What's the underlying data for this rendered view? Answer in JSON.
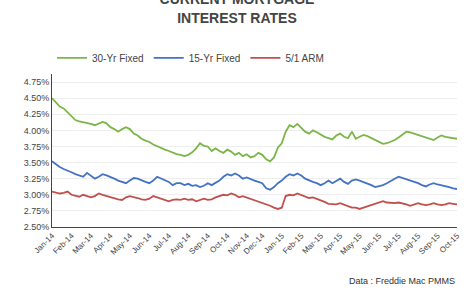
{
  "chart_data": {
    "type": "line",
    "title": "CURRENT MORTGAGE\nINTEREST RATES",
    "annotations": [
      "Data : Freddie Mac PMMS"
    ],
    "categories": [
      "Jan-14",
      null,
      null,
      null,
      null,
      "Feb-14",
      null,
      null,
      null,
      null,
      "Mar-14",
      null,
      null,
      null,
      null,
      "Apr-14",
      null,
      null,
      null,
      null,
      "May-14",
      null,
      null,
      null,
      null,
      "Jun-14",
      null,
      null,
      null,
      null,
      "Jul-14",
      null,
      null,
      null,
      null,
      "Aug-14",
      null,
      null,
      null,
      null,
      "Sep-14",
      null,
      null,
      null,
      null,
      "Oct-14",
      null,
      null,
      null,
      null,
      "Nov-14",
      null,
      null,
      null,
      "Dec-14",
      null,
      null,
      null,
      null,
      "Jan-15",
      null,
      null,
      null,
      null,
      "Feb-15",
      null,
      null,
      null,
      null,
      "Mar-15",
      null,
      null,
      null,
      null,
      "Apr-15",
      null,
      null,
      null,
      null,
      "May-15",
      null,
      null,
      null,
      null,
      "Jun-15",
      null,
      null,
      null,
      null,
      "Jul-15",
      null,
      null,
      null,
      null,
      "Aug-15",
      null,
      null,
      null,
      null,
      "Sep-15",
      null,
      null,
      null,
      null,
      "Oct-15"
    ],
    "series": [
      {
        "name": "30-Yr Fixed",
        "color": "#7ab648",
        "values": [
          4.5,
          4.43,
          4.37,
          4.34,
          4.28,
          4.22,
          4.16,
          4.14,
          4.13,
          4.12,
          4.1,
          4.08,
          4.1,
          4.13,
          4.11,
          4.05,
          4.02,
          3.98,
          4.02,
          4.05,
          4.02,
          3.95,
          3.92,
          3.87,
          3.84,
          3.82,
          3.78,
          3.75,
          3.73,
          3.7,
          3.68,
          3.65,
          3.63,
          3.62,
          3.6,
          3.62,
          3.66,
          3.72,
          3.8,
          3.76,
          3.75,
          3.68,
          3.72,
          3.68,
          3.65,
          3.7,
          3.67,
          3.62,
          3.65,
          3.6,
          3.63,
          3.58,
          3.6,
          3.65,
          3.62,
          3.55,
          3.52,
          3.58,
          3.73,
          3.8,
          3.98,
          4.08,
          4.05,
          4.1,
          4.04,
          3.98,
          3.95,
          4.0,
          3.97,
          3.93,
          3.9,
          3.88,
          3.86,
          3.92,
          3.95,
          3.9,
          3.88,
          3.98,
          3.87,
          3.9,
          3.93,
          3.91,
          3.88,
          3.85,
          3.82,
          3.79,
          3.8,
          3.82,
          3.85,
          3.89,
          3.94,
          3.98,
          3.97,
          3.95,
          3.93,
          3.91,
          3.9,
          3.87,
          3.85,
          3.89,
          3.92,
          3.9,
          3.89,
          3.88,
          3.87
        ]
      },
      {
        "name": "15-Yr Fixed",
        "color": "#4472c4",
        "values": [
          3.52,
          3.47,
          3.43,
          3.4,
          3.38,
          3.35,
          3.32,
          3.3,
          3.28,
          3.34,
          3.3,
          3.25,
          3.28,
          3.32,
          3.3,
          3.28,
          3.25,
          3.22,
          3.2,
          3.18,
          3.22,
          3.26,
          3.25,
          3.22,
          3.2,
          3.18,
          3.22,
          3.28,
          3.25,
          3.22,
          3.2,
          3.15,
          3.18,
          3.18,
          3.15,
          3.17,
          3.14,
          3.15,
          3.12,
          3.14,
          3.18,
          3.15,
          3.18,
          3.22,
          3.28,
          3.32,
          3.3,
          3.33,
          3.3,
          3.25,
          3.27,
          3.24,
          3.22,
          3.2,
          3.18,
          3.1,
          3.08,
          3.12,
          3.18,
          3.22,
          3.28,
          3.32,
          3.3,
          3.33,
          3.3,
          3.25,
          3.22,
          3.2,
          3.18,
          3.15,
          3.18,
          3.22,
          3.18,
          3.22,
          3.25,
          3.2,
          3.17,
          3.22,
          3.24,
          3.22,
          3.2,
          3.17,
          3.15,
          3.12,
          3.13,
          3.15,
          3.18,
          3.22,
          3.25,
          3.28,
          3.26,
          3.25,
          3.22,
          3.2,
          3.18,
          3.15,
          3.13,
          3.16,
          3.18,
          3.16,
          3.15,
          3.14,
          3.12,
          3.1,
          3.09
        ]
      },
      {
        "name": "5/1 ARM",
        "color": "#c0504d",
        "values": [
          3.05,
          3.03,
          3.02,
          3.03,
          3.05,
          3.0,
          2.98,
          2.97,
          3.0,
          2.98,
          2.96,
          2.98,
          3.02,
          3.0,
          2.98,
          2.97,
          2.95,
          2.93,
          2.92,
          2.96,
          2.98,
          2.97,
          2.95,
          2.93,
          2.92,
          2.94,
          2.98,
          2.96,
          2.94,
          2.93,
          2.9,
          2.92,
          2.93,
          2.92,
          2.94,
          2.92,
          2.93,
          2.9,
          2.92,
          2.94,
          2.92,
          2.93,
          2.96,
          2.98,
          3.0,
          2.99,
          3.02,
          3.0,
          2.96,
          2.98,
          2.96,
          2.94,
          2.92,
          2.9,
          2.88,
          2.86,
          2.83,
          2.8,
          2.78,
          2.8,
          2.98,
          3.0,
          2.99,
          3.02,
          3.0,
          2.97,
          2.95,
          2.96,
          2.94,
          2.91,
          2.89,
          2.86,
          2.85,
          2.85,
          2.87,
          2.85,
          2.83,
          2.8,
          2.8,
          2.78,
          2.8,
          2.82,
          2.84,
          2.86,
          2.87,
          2.9,
          2.88,
          2.87,
          2.87,
          2.88,
          2.87,
          2.85,
          2.83,
          2.85,
          2.87,
          2.85,
          2.84,
          2.85,
          2.87,
          2.85,
          2.84,
          2.85,
          2.87,
          2.86,
          2.85
        ]
      }
    ],
    "ylim": [
      2.5,
      4.875
    ],
    "yticks": [
      {
        "value": 2.5,
        "label": "2.50%"
      },
      {
        "value": 2.75,
        "label": "2.75%"
      },
      {
        "value": 3.0,
        "label": "3.00%"
      },
      {
        "value": 3.25,
        "label": "3.25%"
      },
      {
        "value": 3.5,
        "label": "3.50%"
      },
      {
        "value": 3.75,
        "label": "3.75%"
      },
      {
        "value": 4.0,
        "label": "4.00%"
      },
      {
        "value": 4.25,
        "label": "4.25%"
      },
      {
        "value": 4.5,
        "label": "4.50%"
      },
      {
        "value": 4.75,
        "label": "4.75%"
      }
    ],
    "grid": true,
    "legend": "upper left"
  }
}
